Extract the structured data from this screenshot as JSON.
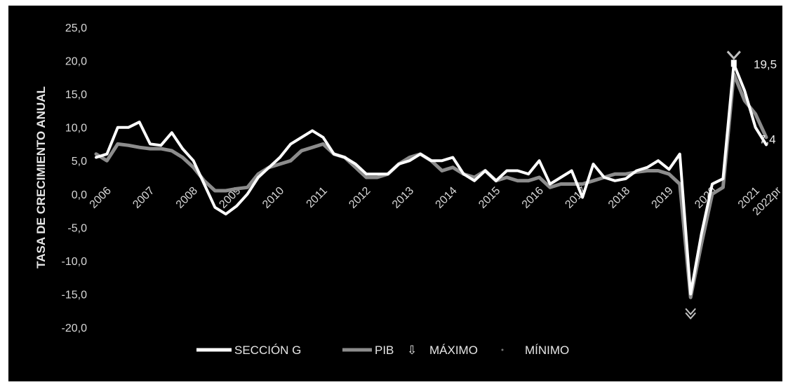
{
  "chart_data": {
    "type": "line",
    "xlabel": "",
    "ylabel": "TASA DE CRECIMIENTO ANUAL",
    "ylim": [
      -20,
      25
    ],
    "yticks": [
      "25,0",
      "20,0",
      "15,0",
      "10,0",
      "5,0",
      "0,0",
      "-5,0",
      "-10,0",
      "-15,0",
      "-20,0"
    ],
    "year_labels": [
      "2006",
      "2007",
      "2008",
      "2009",
      "2010",
      "2011",
      "2012",
      "2013",
      "2014",
      "2015",
      "2016",
      "2017",
      "2018",
      "2019",
      "2020",
      "2021",
      "2022pr"
    ],
    "grid": false,
    "legend_position": "bottom",
    "series": [
      {
        "name": "SECCIÓN G",
        "color": "#ffffff",
        "values": [
          5.5,
          6.0,
          10.0,
          10.0,
          10.8,
          7.5,
          7.3,
          9.2,
          6.8,
          5.0,
          1.5,
          -2.0,
          -3.0,
          -1.8,
          0.0,
          2.5,
          4.0,
          5.5,
          7.5,
          8.5,
          9.5,
          8.5,
          6.0,
          5.5,
          4.5,
          3.0,
          3.0,
          3.0,
          4.5,
          5.0,
          6.0,
          5.0,
          5.0,
          5.5,
          3.0,
          2.0,
          3.5,
          2.0,
          3.5,
          3.5,
          3.0,
          5.0,
          1.5,
          2.5,
          3.5,
          -0.5,
          4.5,
          2.5,
          2.0,
          2.3,
          3.5,
          4.0,
          5.0,
          3.7,
          6.0,
          -15.0,
          -6.0,
          1.5,
          2.3,
          19.5,
          15.5,
          10.0,
          7.4
        ]
      },
      {
        "name": "PIB",
        "color": "#8c8c8c",
        "values": [
          6.0,
          5.0,
          7.5,
          7.3,
          7.0,
          6.8,
          6.8,
          6.5,
          5.5,
          4.0,
          2.0,
          0.5,
          0.5,
          0.8,
          1.0,
          3.0,
          4.0,
          4.5,
          5.0,
          6.5,
          7.0,
          7.5,
          6.0,
          5.5,
          4.0,
          2.5,
          2.5,
          3.0,
          4.5,
          5.5,
          6.0,
          5.0,
          3.5,
          4.0,
          3.0,
          2.5,
          3.5,
          2.0,
          2.5,
          2.0,
          2.0,
          2.5,
          1.0,
          1.5,
          1.5,
          1.5,
          2.0,
          2.5,
          3.0,
          3.0,
          3.3,
          3.5,
          3.5,
          3.0,
          1.5,
          -15.5,
          -7.5,
          0.0,
          1.0,
          18.0,
          14.0,
          12.0,
          8.5
        ]
      }
    ],
    "legend": [
      "SECCIÓN G",
      "PIB",
      "MÁXIMO",
      "MÍNIMO"
    ],
    "annotations": {
      "max_label": "19,5",
      "max_value": 19.5,
      "min_value": -15.5,
      "last_label": "7,4",
      "last_value": 7.4
    }
  }
}
